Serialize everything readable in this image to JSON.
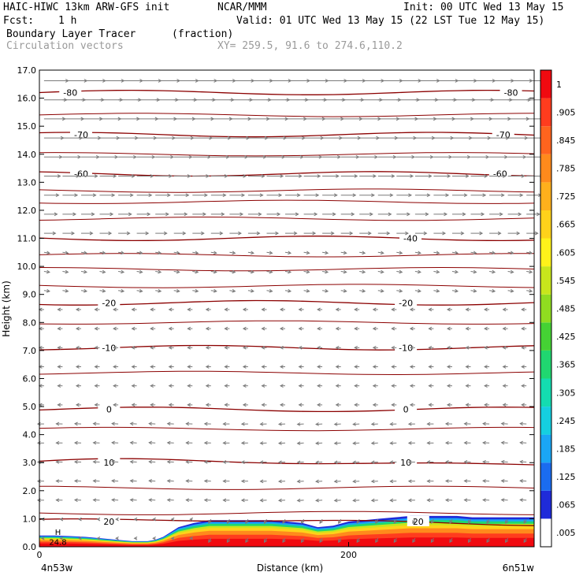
{
  "header": {
    "model": "HAIC-HIWC 13km ARW-GFS init",
    "org": "NCAR/MMM",
    "init": "Init: 00 UTC Wed 13 May 15",
    "fcst_label": "Fcst:",
    "fcst_value": "1 h",
    "valid": "Valid: 01 UTC Wed 13 May 15 (22 LST Tue 12 May 15)",
    "field_name": "Boundary Layer Tracer",
    "field_units": "(fraction)",
    "vectors": "Circulation vectors",
    "xy": "XY= 259.5, 91.6 to 274.6,110.2"
  },
  "chart_data": {
    "type": "heatmap",
    "ylabel": "Height (km)",
    "xlabel": "Distance (km)",
    "ylim": [
      0,
      17
    ],
    "xlim": [
      0,
      320
    ],
    "y_ticks": [
      "0.0",
      "1.0",
      "2.0",
      "3.0",
      "4.0",
      "5.0",
      "6.0",
      "7.0",
      "8.0",
      "9.0",
      "10.0",
      "11.0",
      "12.0",
      "13.0",
      "14.0",
      "15.0",
      "16.0",
      "17.0"
    ],
    "x_ticks": [
      {
        "value": 0,
        "label": "0"
      },
      {
        "value": 200,
        "label": "200"
      }
    ],
    "x_end_labels": {
      "left": "4n53w",
      "right": "6n51w"
    },
    "colorbar_labels": [
      ".005",
      ".065",
      ".125",
      ".185",
      ".245",
      ".305",
      ".365",
      ".425",
      ".485",
      ".545",
      ".605",
      ".665",
      ".725",
      ".785",
      ".845",
      ".905",
      "1"
    ],
    "colorbar_colors": [
      "#ffffff",
      "#1f2bd9",
      "#1a6cf0",
      "#1aa6f5",
      "#15cfe0",
      "#14dcb0",
      "#20d770",
      "#45d234",
      "#90dc20",
      "#c8e61c",
      "#fff21a",
      "#ffd21a",
      "#ffb01c",
      "#ff8a1c",
      "#ff641e",
      "#ff3c1e",
      "#f00a10"
    ],
    "isotherm_color": "#8b0000",
    "vector_color": "#7a7a7a",
    "temperature_contours": [
      {
        "label": "-80",
        "height": 16.2
      },
      {
        "label": "-70",
        "height": 14.7
      },
      {
        "label": "-60",
        "height": 13.3
      },
      {
        "label": "-40",
        "height": 11.0
      },
      {
        "label": "-20",
        "height": 8.7
      },
      {
        "label": "-10",
        "height": 7.1
      },
      {
        "label": "0",
        "height": 4.9
      },
      {
        "label": "10",
        "height": 3.0
      },
      {
        "label": "20",
        "height": 0.9
      }
    ],
    "contour_label_pairs": [
      {
        "label": "-80",
        "x": [
          20,
          305
        ]
      },
      {
        "label": "-70",
        "x": [
          27,
          300
        ]
      },
      {
        "label": "-60",
        "x": [
          27,
          298
        ]
      },
      {
        "label": "-40",
        "x": [
          240
        ]
      },
      {
        "label": "-20",
        "x": [
          45,
          237
        ]
      },
      {
        "label": "-10",
        "x": [
          45,
          237
        ]
      },
      {
        "label": "0",
        "x": [
          45,
          237
        ]
      },
      {
        "label": "10",
        "x": [
          45,
          237
        ]
      },
      {
        "label": "20",
        "x": [
          45,
          245
        ]
      }
    ],
    "annotations": [
      {
        "text": "H",
        "x": 12,
        "y": 0.5
      },
      {
        "text": "24.8",
        "x": 12,
        "y": 0.15
      }
    ],
    "tracer_top_profile": {
      "x": [
        0,
        10,
        20,
        30,
        40,
        50,
        60,
        70,
        75,
        80,
        90,
        100,
        110,
        120,
        130,
        140,
        150,
        160,
        170,
        180,
        190,
        200,
        210,
        220,
        230,
        240,
        250,
        260,
        270,
        280,
        290,
        300,
        310,
        320
      ],
      "height": [
        0.4,
        0.4,
        0.38,
        0.35,
        0.3,
        0.25,
        0.2,
        0.2,
        0.25,
        0.35,
        0.7,
        0.85,
        0.95,
        0.95,
        0.95,
        0.95,
        0.95,
        0.9,
        0.85,
        0.7,
        0.75,
        0.9,
        0.95,
        1.0,
        1.05,
        1.1,
        1.1,
        1.1,
        1.1,
        1.05,
        1.05,
        1.05,
        1.05,
        1.05
      ]
    }
  }
}
